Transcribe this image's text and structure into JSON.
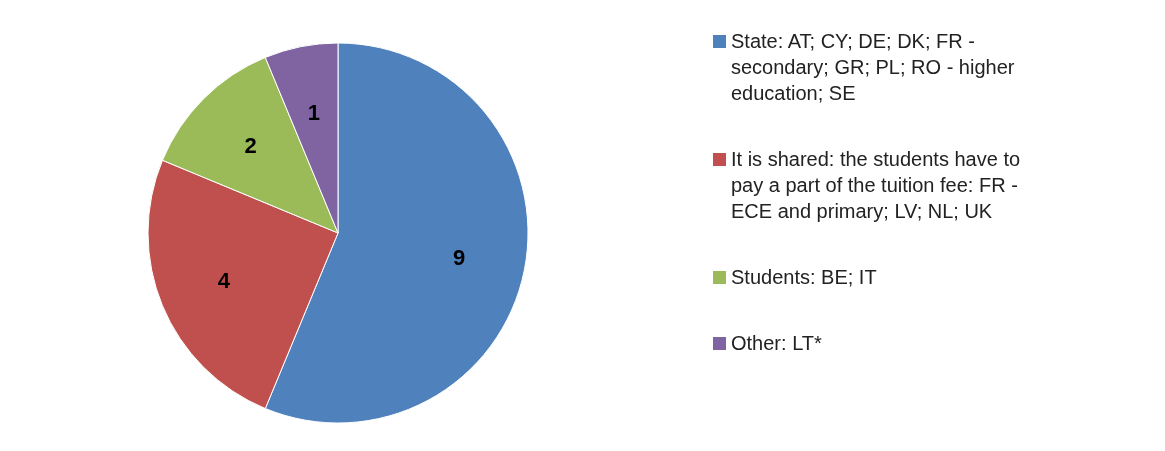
{
  "chart_data": {
    "type": "pie",
    "categories": [
      "State: AT; CY; DE; DK; FR - secondary; GR; PL; RO - higher education; SE",
      "It is shared: the students have to pay a part of the tuition fee: FR - ECE and primary; LV; NL; UK",
      "Students: BE; IT",
      "Other: LT*"
    ],
    "values": [
      9,
      4,
      2,
      1
    ],
    "colors": [
      "#4f81bd",
      "#c0504d",
      "#9bbb59",
      "#8064a2"
    ],
    "data_labels": true,
    "legend": "right"
  }
}
